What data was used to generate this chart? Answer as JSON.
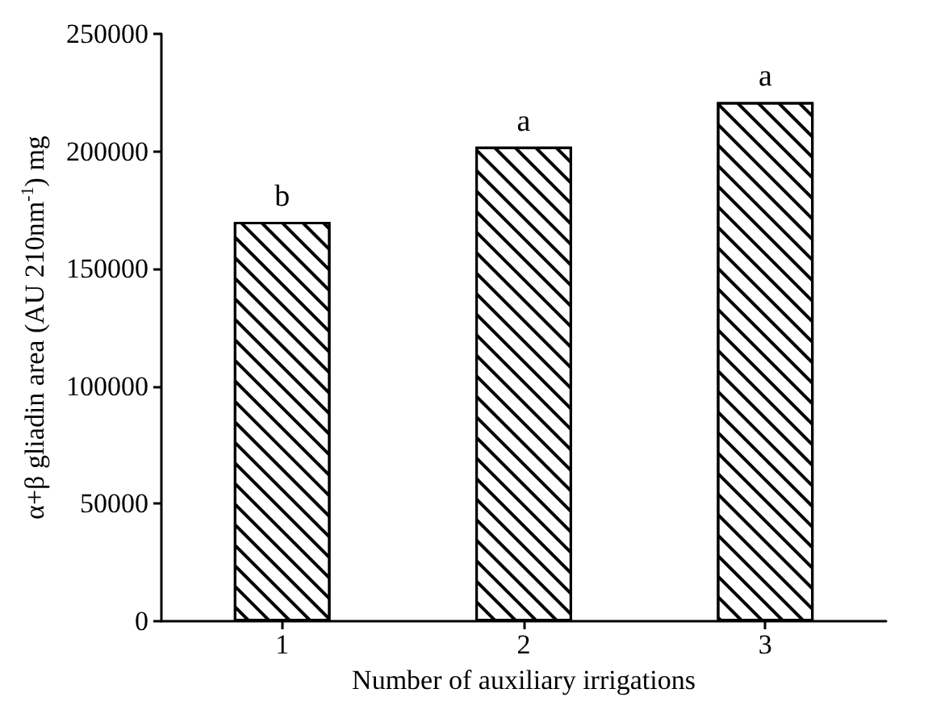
{
  "chart_data": {
    "type": "bar",
    "xlabel": "Number of auxiliary irrigations",
    "ylabel": "α+β gliadin area (AU 210nm$^{-1}$) mg",
    "categories": [
      "1",
      "2",
      "3"
    ],
    "values": [
      170000,
      202000,
      221000
    ],
    "color": "#ffffff",
    "ylim": [
      0,
      250000
    ],
    "yticks": [
      0,
      50000,
      100000,
      150000,
      200000,
      250000
    ],
    "grid": false,
    "annotations": [
      {
        "text": "b",
        "x": "1",
        "y": 170000
      },
      {
        "text": "a",
        "x": "2",
        "y": 202000
      },
      {
        "text": "a",
        "x": "3",
        "y": 221000
      }
    ]
  }
}
